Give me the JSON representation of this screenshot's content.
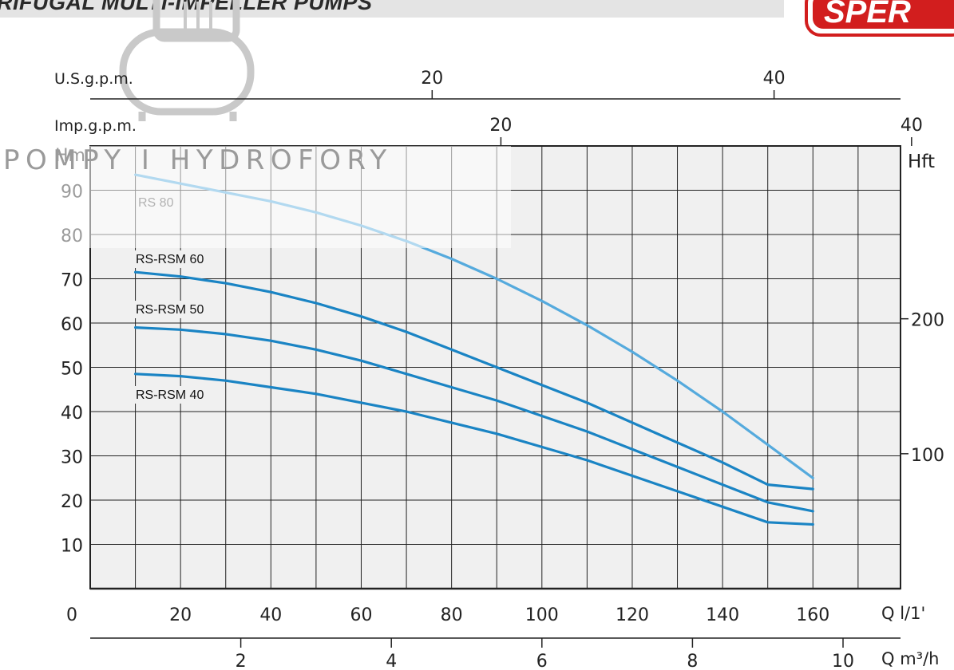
{
  "header": {
    "title": "RIFUGAL MULTI-IMPELLER PUMPS",
    "logo_text": "SPER"
  },
  "watermark": {
    "text": "POMPY I HYDROFORY"
  },
  "chart_data": {
    "type": "line",
    "x": [
      10,
      20,
      30,
      40,
      50,
      60,
      70,
      80,
      90,
      100,
      110,
      120,
      130,
      140,
      150,
      160
    ],
    "series": [
      {
        "name": "RS 80",
        "color": "#55aadd",
        "values": [
          93.5,
          91.5,
          89.5,
          87.5,
          85,
          82,
          78.5,
          74.5,
          70,
          65,
          59.5,
          53.5,
          47,
          40,
          32.5,
          25
        ]
      },
      {
        "name": "RS-RSM 60",
        "color": "#1a84c4",
        "values": [
          71.5,
          70.5,
          69,
          67,
          64.5,
          61.5,
          58,
          54,
          50,
          46,
          42,
          37.5,
          33,
          28.5,
          23.5,
          22.5
        ]
      },
      {
        "name": "RS-RSM 50",
        "color": "#1a84c4",
        "values": [
          59,
          58.5,
          57.5,
          56,
          54,
          51.5,
          48.5,
          45.5,
          42.5,
          39,
          35.5,
          31.5,
          27.5,
          23.5,
          19.5,
          17.5
        ]
      },
      {
        "name": "RS-RSM 40",
        "color": "#1a84c4",
        "values": [
          48.5,
          48,
          47,
          45.5,
          44,
          42,
          40,
          37.5,
          35,
          32,
          29,
          25.5,
          22,
          18.5,
          15,
          14.5
        ]
      }
    ],
    "yaxis_left": {
      "label": "Hm",
      "ticks": [
        10,
        20,
        30,
        40,
        50,
        60,
        70,
        80,
        90
      ],
      "ylim": [
        0,
        100
      ]
    },
    "yaxis_right": {
      "label": "Hft",
      "ticks": [
        100,
        200
      ]
    },
    "xaxis_main": {
      "label": "Q l/1'",
      "zero_label": "0",
      "ticks": [
        20,
        40,
        60,
        80,
        100,
        120,
        140,
        160
      ],
      "xlim": [
        0,
        170
      ]
    },
    "xaxis_m3h": {
      "label": "Q m³/h",
      "ticks": [
        2,
        4,
        6,
        8,
        10
      ]
    },
    "xaxis_usgpm": {
      "label": "U.S.g.p.m.",
      "ticks": [
        20,
        40
      ]
    },
    "xaxis_impgpm": {
      "label": "Imp.g.p.m.",
      "ticks": [
        20,
        40
      ]
    },
    "grid": true
  }
}
